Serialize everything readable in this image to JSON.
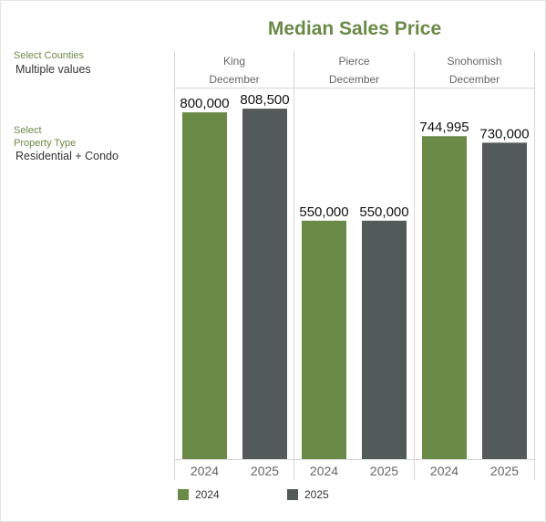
{
  "title": "Median Sales Price",
  "filters": [
    {
      "label": "Select Counties",
      "value": "Multiple values"
    },
    {
      "label": "Select\nProperty Type",
      "value": "Residential + Condo"
    }
  ],
  "colors": {
    "y2024": "#6a8a47",
    "y2025": "#525b59",
    "accent": "#6a8a47"
  },
  "chart_data": {
    "type": "bar",
    "title": "Median Sales Price",
    "panels": [
      {
        "county": "King",
        "month": "December",
        "values": [
          800000,
          808500
        ],
        "labels": [
          "800,000",
          "808,500"
        ]
      },
      {
        "county": "Pierce",
        "month": "December",
        "values": [
          550000,
          550000
        ],
        "labels": [
          "550,000",
          "550,000"
        ]
      },
      {
        "county": "Snohomish",
        "month": "December",
        "values": [
          744995,
          730000
        ],
        "labels": [
          "744,995",
          "730,000"
        ]
      }
    ],
    "categories": [
      "2024",
      "2025"
    ],
    "series": [
      {
        "name": "2024"
      },
      {
        "name": "2025"
      }
    ],
    "ylim": [
      0,
      855000
    ],
    "legend": "bottom"
  }
}
